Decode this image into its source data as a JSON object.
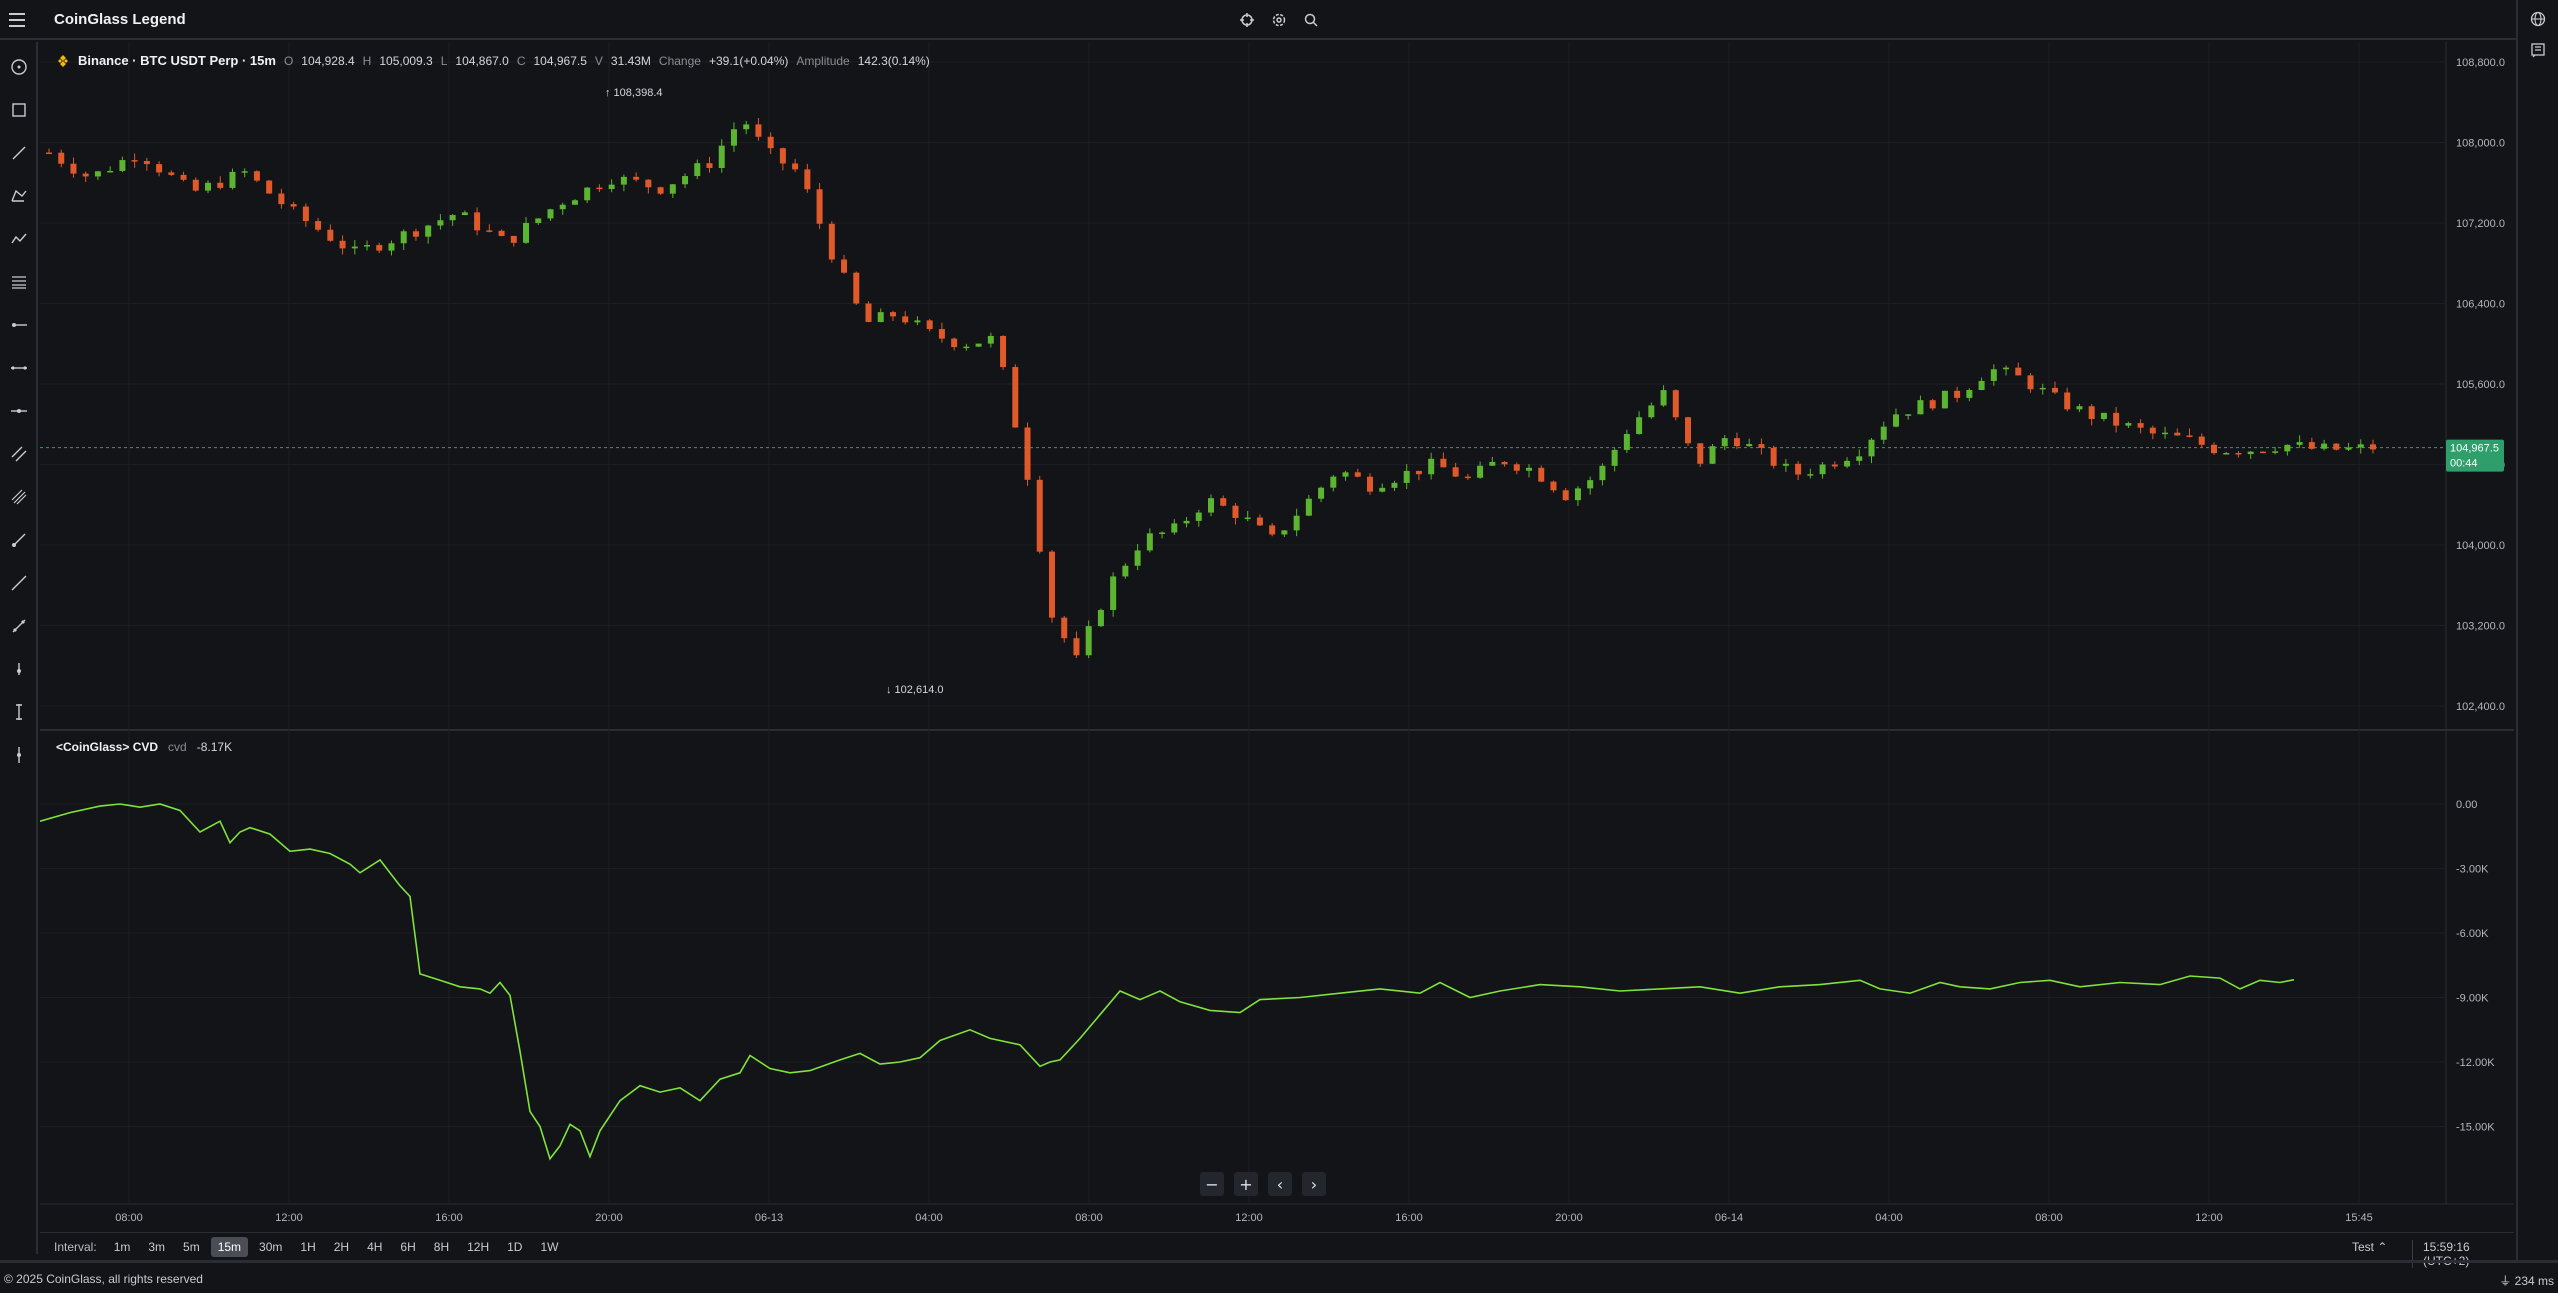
{
  "app": {
    "title": "CoinGlass Legend"
  },
  "legend": {
    "symbol": "Binance · BTC USDT Perp · 15m",
    "open_label": "O",
    "open": "104,928.4",
    "high_label": "H",
    "high": "105,009.3",
    "low_label": "L",
    "low": "104,867.0",
    "close_label": "C",
    "close": "104,967.5",
    "volume_label": "V",
    "volume": "31.43M",
    "change_label": "Change",
    "change": "+39.1(+0.04%)",
    "amplitude_label": "Amplitude",
    "amplitude": "142.3(0.14%)"
  },
  "price_pane": {
    "y_ticks": [
      "108,800.0",
      "108,000.0",
      "107,200.0",
      "106,400.0",
      "105,600.0",
      "104,800.0",
      "104,000.0",
      "103,200.0",
      "102,400.0"
    ],
    "high_marker": "108,398.4",
    "low_marker": "102,614.0",
    "last_price": "104,967.5",
    "countdown": "00:44",
    "colors": {
      "up": "#5cb531",
      "down": "#e0592a",
      "last_price_bg": "#2e9e6b"
    }
  },
  "cvd_pane": {
    "name": "<CoinGlass> CVD",
    "param": "cvd",
    "value": "-8.17K",
    "y_ticks": [
      "0.00",
      "-3.00K",
      "-6.00K",
      "-9.00K",
      "-12.00K",
      "-15.00K"
    ],
    "color": "#7fe33a"
  },
  "x_axis": {
    "ticks": [
      "08:00",
      "12:00",
      "16:00",
      "20:00",
      "06-13",
      "04:00",
      "08:00",
      "12:00",
      "16:00",
      "20:00",
      "06-14",
      "04:00",
      "08:00",
      "12:00",
      "15:45"
    ]
  },
  "controls": {
    "zoom_out": "−",
    "zoom_in": "+",
    "prev": "‹",
    "next": "›"
  },
  "interval_bar": {
    "label": "Interval:",
    "options": [
      "1m",
      "3m",
      "5m",
      "15m",
      "30m",
      "1H",
      "2H",
      "4H",
      "6H",
      "8H",
      "12H",
      "1D",
      "1W"
    ],
    "selected": "15m",
    "theme": "Test",
    "clock": "15:59:16 (UTC+2)"
  },
  "footer": {
    "copyright": "© 2025 CoinGlass, all rights reserved",
    "latency": "234 ms"
  },
  "icons": {
    "left_tools": [
      "crosshair-icon",
      "rectangle-icon",
      "trend-line-icon",
      "pattern-icon",
      "zigzag-icon",
      "fib-levels-icon",
      "horizontal-ray-icon",
      "horizontal-line-icon",
      "horizontal-segment-icon",
      "parallel-channel-icon",
      "pitchfork-icon",
      "ray-icon",
      "extended-line-icon",
      "info-line-icon",
      "vertical-ray-icon",
      "vertical-line-icon",
      "vertical-segment-icon"
    ],
    "top": [
      "cursor-icon",
      "settings-icon",
      "search-icon"
    ],
    "right": [
      "globe-icon",
      "book-icon"
    ]
  }
}
